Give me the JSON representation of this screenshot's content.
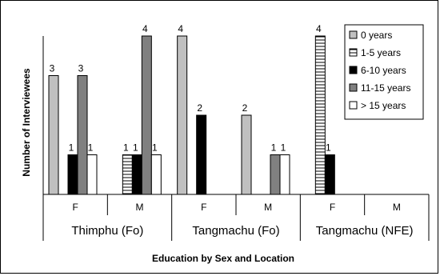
{
  "chart_data": {
    "type": "bar",
    "title": "",
    "xlabel": "Education by Sex and Location",
    "ylabel": "Number of Interviewees",
    "ylim": [
      0,
      4
    ],
    "grid": false,
    "legend_position": "top-right",
    "groups": [
      {
        "location": "Thimphu (Fo)",
        "sexes": [
          "F",
          "M"
        ]
      },
      {
        "location": "Tangmachu (Fo)",
        "sexes": [
          "F",
          "M"
        ]
      },
      {
        "location": "Tangmachu (NFE)",
        "sexes": [
          "F",
          "M"
        ]
      }
    ],
    "categories": [
      "F",
      "M",
      "F",
      "M",
      "F",
      "M"
    ],
    "series": [
      {
        "name": "0 years",
        "pattern": "light-gray",
        "values": [
          3,
          0,
          4,
          2,
          0,
          0
        ]
      },
      {
        "name": "1-5 years",
        "pattern": "horizontal-stripes",
        "values": [
          0,
          1,
          0,
          0,
          4,
          0
        ]
      },
      {
        "name": "6-10 years",
        "pattern": "black",
        "values": [
          1,
          1,
          2,
          0,
          1,
          0
        ]
      },
      {
        "name": "11-15 years",
        "pattern": "dark-gray",
        "values": [
          3,
          4,
          0,
          1,
          0,
          0
        ]
      },
      {
        "name": "> 15 years",
        "pattern": "white",
        "values": [
          1,
          1,
          0,
          1,
          0,
          0
        ]
      }
    ]
  }
}
